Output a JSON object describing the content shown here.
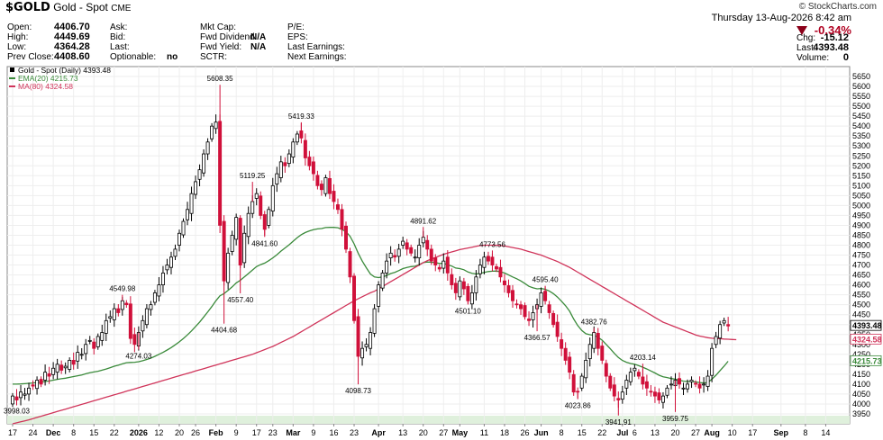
{
  "header": {
    "symbol": "$GOLD",
    "name": "Gold - Spot",
    "exchange": "CME",
    "watermark": "© StockCharts.com",
    "date": "Thursday 13-Aug-2026 8:42 am",
    "change_pct": "-0.34%",
    "fields_left": [
      {
        "label": "Open:",
        "value": "4406.70"
      },
      {
        "label": "High:",
        "value": "4449.69"
      },
      {
        "label": "Low:",
        "value": "4364.28"
      },
      {
        "label": "Prev Close:",
        "value": "4408.60"
      }
    ],
    "fields_mid": [
      {
        "label": "Ask:",
        "value": ""
      },
      {
        "label": "Bid:",
        "value": ""
      },
      {
        "label": "Last:",
        "value": ""
      },
      {
        "label": "Optionable:",
        "value": "no"
      }
    ],
    "fields_mid2": [
      {
        "label": "Mkt Cap:",
        "value": ""
      },
      {
        "label": "Fwd Dividend:",
        "value": "N/A"
      },
      {
        "label": "Fwd Yield:",
        "value": "N/A"
      },
      {
        "label": "SCTR:",
        "value": ""
      }
    ],
    "fields_mid3": [
      {
        "label": "P/E:",
        "value": ""
      },
      {
        "label": "EPS:",
        "value": ""
      },
      {
        "label": "Last Earnings:",
        "value": ""
      },
      {
        "label": "Next Earnings:",
        "value": ""
      }
    ],
    "fields_right": [
      {
        "label": "Chg:",
        "value": "-15.12"
      },
      {
        "label": "Last:",
        "value": "4393.48"
      },
      {
        "label": "Volume:",
        "value": "0"
      }
    ]
  },
  "legend": [
    {
      "text": "Gold - Spot (Daily) 4393.48",
      "color": "#000000"
    },
    {
      "text": "EMA(20) 4215.73",
      "color": "#3a8a3a"
    },
    {
      "text": "MA(80) 4324.58",
      "color": "#d0345a"
    }
  ],
  "chart_data": {
    "type": "candlestick",
    "ylim": [
      3900,
      5700
    ],
    "y_ticks": [
      3950,
      4000,
      4050,
      4100,
      4150,
      4200,
      4250,
      4300,
      4350,
      4400,
      4450,
      4500,
      4550,
      4600,
      4650,
      4700,
      4750,
      4800,
      4850,
      4900,
      4950,
      5000,
      5050,
      5100,
      5150,
      5200,
      5250,
      5300,
      5350,
      5400,
      5450,
      5500,
      5550,
      5600,
      5650
    ],
    "x_labels": [
      {
        "label": "17",
        "i": 0
      },
      {
        "label": "24",
        "i": 5
      },
      {
        "label": "Dec",
        "i": 10
      },
      {
        "label": "8",
        "i": 15
      },
      {
        "label": "15",
        "i": 20
      },
      {
        "label": "22",
        "i": 25
      },
      {
        "label": "2026",
        "i": 31
      },
      {
        "label": "12",
        "i": 36
      },
      {
        "label": "20",
        "i": 41
      },
      {
        "label": "26",
        "i": 45
      },
      {
        "label": "Feb",
        "i": 50
      },
      {
        "label": "9",
        "i": 55
      },
      {
        "label": "17",
        "i": 60
      },
      {
        "label": "23",
        "i": 64
      },
      {
        "label": "Mar",
        "i": 69
      },
      {
        "label": "9",
        "i": 74
      },
      {
        "label": "16",
        "i": 79
      },
      {
        "label": "23",
        "i": 84
      },
      {
        "label": "Apr",
        "i": 90
      },
      {
        "label": "13",
        "i": 96
      },
      {
        "label": "20",
        "i": 101
      },
      {
        "label": "27",
        "i": 106
      },
      {
        "label": "May",
        "i": 110
      },
      {
        "label": "11",
        "i": 116
      },
      {
        "label": "18",
        "i": 121
      },
      {
        "label": "26",
        "i": 126
      },
      {
        "label": "Jun",
        "i": 130
      },
      {
        "label": "8",
        "i": 135
      },
      {
        "label": "15",
        "i": 140
      },
      {
        "label": "22",
        "i": 145
      },
      {
        "label": "Jul",
        "i": 150
      },
      {
        "label": "6",
        "i": 153
      },
      {
        "label": "13",
        "i": 158
      },
      {
        "label": "20",
        "i": 163
      },
      {
        "label": "27",
        "i": 168
      },
      {
        "label": "Aug",
        "i": 172
      },
      {
        "label": "10",
        "i": 177
      },
      {
        "label": "17",
        "i": 182
      },
      {
        "label": "Sep",
        "i": 189
      },
      {
        "label": "8",
        "i": 195
      },
      {
        "label": "14",
        "i": 200
      }
    ],
    "price_labels": {
      "last": 4393.48,
      "ma80": 4324.58,
      "ema20": 4215.73
    },
    "annotations": [
      {
        "text": "3998.03",
        "i": 1,
        "value": 3998.03,
        "pos": "below"
      },
      {
        "text": "4549.98",
        "i": 27,
        "value": 4549.98,
        "pos": "above"
      },
      {
        "text": "4274.03",
        "i": 31,
        "value": 4274.03,
        "pos": "below"
      },
      {
        "text": "5608.35",
        "i": 51,
        "value": 5608.35,
        "pos": "above"
      },
      {
        "text": "4404.68",
        "i": 52,
        "value": 4404.68,
        "pos": "below"
      },
      {
        "text": "4557.40",
        "i": 56,
        "value": 4557.4,
        "pos": "below"
      },
      {
        "text": "5119.25",
        "i": 59,
        "value": 5119.25,
        "pos": "above"
      },
      {
        "text": "4841.60",
        "i": 62,
        "value": 4841.6,
        "pos": "below"
      },
      {
        "text": "5419.33",
        "i": 71,
        "value": 5419.33,
        "pos": "above"
      },
      {
        "text": "4098.73",
        "i": 85,
        "value": 4098.73,
        "pos": "below"
      },
      {
        "text": "4891.62",
        "i": 101,
        "value": 4891.62,
        "pos": "above"
      },
      {
        "text": "4773.56",
        "i": 118,
        "value": 4773.56,
        "pos": "above"
      },
      {
        "text": "4501.10",
        "i": 112,
        "value": 4501.1,
        "pos": "below"
      },
      {
        "text": "4595.40",
        "i": 131,
        "value": 4595.4,
        "pos": "above"
      },
      {
        "text": "4366.57",
        "i": 129,
        "value": 4366.57,
        "pos": "below"
      },
      {
        "text": "4382.76",
        "i": 143,
        "value": 4382.76,
        "pos": "above"
      },
      {
        "text": "4023.86",
        "i": 139,
        "value": 4023.86,
        "pos": "below"
      },
      {
        "text": "4203.14",
        "i": 155,
        "value": 4203.14,
        "pos": "above"
      },
      {
        "text": "3941.91",
        "i": 149,
        "value": 3941.91,
        "pos": "below"
      },
      {
        "text": "3959.75",
        "i": 163,
        "value": 3959.75,
        "pos": "below"
      }
    ],
    "closes": [
      4040,
      4020,
      4060,
      4050,
      4080,
      4090,
      4120,
      4100,
      4160,
      4140,
      4180,
      4200,
      4170,
      4190,
      4220,
      4200,
      4260,
      4250,
      4300,
      4320,
      4280,
      4340,
      4360,
      4420,
      4440,
      4480,
      4460,
      4520,
      4500,
      4330,
      4300,
      4360,
      4420,
      4480,
      4500,
      4560,
      4600,
      4660,
      4700,
      4740,
      4780,
      4860,
      4920,
      4980,
      5060,
      5120,
      5180,
      5260,
      5320,
      5400,
      5420,
      4900,
      4620,
      4760,
      4850,
      4940,
      4700,
      4860,
      4960,
      5020,
      5060,
      4950,
      4880,
      4980,
      5100,
      5160,
      5220,
      5200,
      5260,
      5320,
      5360,
      5340,
      5240,
      5200,
      5160,
      5100,
      5080,
      5140,
      5060,
      5020,
      4980,
      4880,
      4780,
      4640,
      4420,
      4240,
      4280,
      4300,
      4360,
      4480,
      4600,
      4660,
      4720,
      4760,
      4740,
      4780,
      4820,
      4780,
      4760,
      4740,
      4800,
      4840,
      4780,
      4720,
      4700,
      4680,
      4720,
      4660,
      4600,
      4560,
      4620,
      4580,
      4520,
      4560,
      4640,
      4700,
      4740,
      4720,
      4700,
      4680,
      4640,
      4600,
      4560,
      4520,
      4500,
      4480,
      4440,
      4420,
      4460,
      4500,
      4560,
      4520,
      4460,
      4400,
      4340,
      4280,
      4220,
      4160,
      4060,
      4060,
      4140,
      4220,
      4300,
      4360,
      4280,
      4220,
      4140,
      4080,
      4040,
      4020,
      4060,
      4120,
      4160,
      4180,
      4140,
      4100,
      4080,
      4060,
      4040,
      4020,
      4040,
      4080,
      4100,
      4120,
      4100,
      4080,
      4100,
      4120,
      4100,
      4080,
      4100,
      4140,
      4280,
      4340,
      4400,
      4420,
      4393
    ],
    "series": [
      {
        "name": "EMA(20)",
        "color": "#3a8a3a",
        "values": [
          4100,
          4100,
          4101,
          4102,
          4104,
          4106,
          4108,
          4110,
          4113,
          4116,
          4120,
          4124,
          4127,
          4130,
          4134,
          4138,
          4142,
          4146,
          4152,
          4157,
          4161,
          4165,
          4170,
          4176,
          4183,
          4190,
          4195,
          4202,
          4208,
          4209,
          4210,
          4213,
          4218,
          4224,
          4231,
          4240,
          4250,
          4260,
          4272,
          4284,
          4298,
          4313,
          4330,
          4348,
          4368,
          4390,
          4413,
          4438,
          4464,
          4491,
          4520,
          4545,
          4556,
          4572,
          4590,
          4610,
          4623,
          4640,
          4657,
          4675,
          4692,
          4702,
          4710,
          4722,
          4736,
          4752,
          4770,
          4786,
          4802,
          4820,
          4838,
          4853,
          4864,
          4872,
          4878,
          4882,
          4884,
          4889,
          4890,
          4890,
          4888,
          4880,
          4868,
          4845,
          4807,
          4760,
          4720,
          4686,
          4655,
          4640,
          4637,
          4640,
          4647,
          4657,
          4663,
          4672,
          4682,
          4688,
          4692,
          4694,
          4702,
          4712,
          4715,
          4714,
          4712,
          4708,
          4709,
          4702,
          4695,
          4685,
          4682,
          4676,
          4665,
          4658,
          4655,
          4658,
          4663,
          4667,
          4669,
          4670,
          4666,
          4660,
          4650,
          4640,
          4631,
          4620,
          4607,
          4593,
          4585,
          4580,
          4582,
          4578,
          4569,
          4556,
          4539,
          4518,
          4495,
          4467,
          4428,
          4395,
          4370,
          4354,
          4349,
          4346,
          4336,
          4321,
          4300,
          4278,
          4255,
          4234,
          4219,
          4210,
          4204,
          4200,
          4193,
          4185,
          4176,
          4166,
          4156,
          4145,
          4137,
          4133,
          4128,
          4125,
          4120,
          4115,
          4113,
          4113,
          4111,
          4108,
          4106,
          4108,
          4125,
          4145,
          4168,
          4190,
          4215
        ]
      },
      {
        "name": "MA(80)",
        "color": "#d0345a",
        "values": [
          3900,
          3905,
          3910,
          3915,
          3920,
          3926,
          3932,
          3938,
          3944,
          3950,
          3956,
          3962,
          3968,
          3974,
          3980,
          3986,
          3992,
          3998,
          4004,
          4010,
          4016,
          4022,
          4028,
          4034,
          4040,
          4046,
          4052,
          4058,
          4064,
          4070,
          4076,
          4082,
          4088,
          4094,
          4100,
          4106,
          4112,
          4118,
          4124,
          4130,
          4136,
          4142,
          4148,
          4154,
          4160,
          4166,
          4172,
          4178,
          4184,
          4190,
          4196,
          4202,
          4208,
          4214,
          4220,
          4226,
          4232,
          4238,
          4244,
          4250,
          4258,
          4266,
          4274,
          4282,
          4290,
          4300,
          4310,
          4320,
          4330,
          4340,
          4352,
          4364,
          4376,
          4388,
          4400,
          4412,
          4424,
          4436,
          4448,
          4460,
          4472,
          4484,
          4496,
          4508,
          4520,
          4530,
          4540,
          4550,
          4560,
          4568,
          4580,
          4592,
          4604,
          4616,
          4628,
          4640,
          4652,
          4664,
          4676,
          4688,
          4700,
          4712,
          4722,
          4730,
          4738,
          4746,
          4754,
          4760,
          4766,
          4772,
          4778,
          4782,
          4786,
          4790,
          4794,
          4798,
          4800,
          4800,
          4800,
          4800,
          4798,
          4796,
          4792,
          4788,
          4784,
          4780,
          4774,
          4768,
          4762,
          4756,
          4750,
          4742,
          4734,
          4726,
          4718,
          4708,
          4698,
          4688,
          4676,
          4664,
          4652,
          4640,
          4628,
          4616,
          4604,
          4592,
          4580,
          4568,
          4556,
          4544,
          4532,
          4520,
          4508,
          4496,
          4484,
          4472,
          4460,
          4448,
          4436,
          4424,
          4412,
          4404,
          4396,
          4388,
          4380,
          4372,
          4364,
          4356,
          4348,
          4342,
          4338,
          4334,
          4331,
          4330,
          4329,
          4327,
          4326,
          4325,
          4324
        ]
      }
    ]
  }
}
